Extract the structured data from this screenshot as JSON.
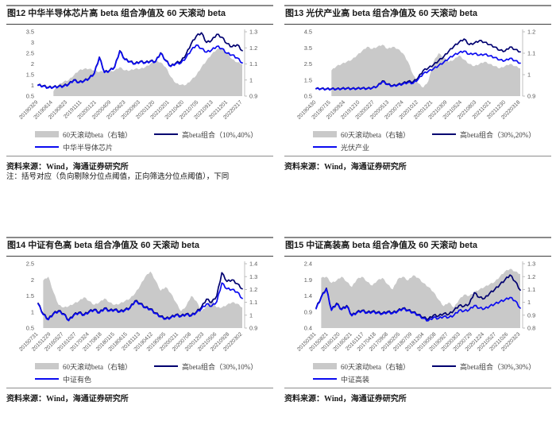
{
  "colors": {
    "area": "#c9c9c9",
    "navy": "#000070",
    "blue": "#0b0bf0",
    "tick_text": "#595959",
    "axis_line": "#b0b0b0"
  },
  "panels": [
    {
      "title": "图12  中华半导体芯片高 beta 组合净值及 60 天滚动 beta",
      "legend": [
        "60天滚动beta（右轴）",
        "高beta组合（10%,40%）",
        "中华半导体芯片"
      ],
      "source": "资料来源：Wind，海通证券研究所",
      "note": "注：括号对应（负向剔除分位点阈值，正向筛选分位点阈值），下同"
    },
    {
      "title": "图13 光伏产业高 beta 组合净值及 60 天滚动 beta",
      "legend": [
        "60天滚动beta（右轴）",
        "高beta组合（30%,20%）",
        "光伏产业"
      ],
      "source": "资料来源：Wind，海通证券研究所"
    },
    {
      "title": "图14 中证有色高 beta 组合净值及 60 天滚动 beta",
      "legend": [
        "60天滚动beta（右轴）",
        "高beta组合（30%,10%）",
        "中证有色"
      ],
      "source": "资料来源：Wind，海通证券研究所"
    },
    {
      "title": "图15 中证高装高 beta 组合净值及 60 天滚动 beta",
      "legend": [
        "60天滚动beta（右轴）",
        "高beta组合（30%,30%）",
        "中证高装"
      ],
      "source": "资料来源：Wind，海通证券研究所"
    }
  ],
  "chart_data": [
    {
      "type": "area+line",
      "title": "图12 中华半导体芯片高 beta 组合净值及 60 天滚动 beta",
      "left_axis": {
        "min": 0.5,
        "max": 3.5,
        "ticks": [
          0.5,
          1,
          1.5,
          2,
          2.5,
          3,
          3.5
        ]
      },
      "right_axis": {
        "min": 0.9,
        "max": 1.3,
        "ticks": [
          0.9,
          1,
          1.1,
          1.2,
          1.3
        ]
      },
      "x_labels": [
        "20190329",
        "20190614",
        "20190823",
        "20191111",
        "20200121",
        "20200409",
        "20200623",
        "20200903",
        "20201120",
        "20210201",
        "20210420",
        "20210705",
        "20210913",
        "20211201",
        "20220217"
      ],
      "jitter_line": 0.045,
      "jitter_area": 0.004,
      "series": [
        {
          "name": "60天滚动beta（右轴）",
          "axis": "right",
          "type": "area",
          "values": [
            null,
            null,
            null,
            0.93,
            0.97,
            0.99,
            1.0,
            1.03,
            1.06,
            1.07,
            1.07,
            1.06,
            1.05,
            1.06,
            1.05,
            1.06,
            1.08,
            1.06,
            1.06,
            1.07,
            1.07,
            1.08,
            1.1,
            1.12,
            1.11,
            1.08,
            1.02,
            0.98,
            0.97,
            0.97,
            1.0,
            1.03,
            1.08,
            1.12,
            1.16,
            1.19,
            1.2,
            1.17,
            1.13,
            1.11,
            1.1
          ]
        },
        {
          "name": "高beta组合（10%,40%）",
          "axis": "left",
          "type": "line",
          "color": "navy",
          "values": [
            1.02,
            0.98,
            0.91,
            0.93,
            0.96,
            0.98,
            1.07,
            1.26,
            1.15,
            1.22,
            1.34,
            1.57,
            2.32,
            1.62,
            1.7,
            1.87,
            2.62,
            2.22,
            2.12,
            2.02,
            2.12,
            2.07,
            2.14,
            2.12,
            2.52,
            2.17,
            1.9,
            2.05,
            2.12,
            2.45,
            2.95,
            3.3,
            3.45,
            3.0,
            3.1,
            3.38,
            3.25,
            2.95,
            2.8,
            2.9,
            2.62
          ]
        },
        {
          "name": "中华半导体芯片",
          "axis": "left",
          "type": "line",
          "color": "blue",
          "values": [
            1.0,
            0.96,
            0.89,
            0.91,
            0.94,
            0.96,
            1.05,
            1.24,
            1.13,
            1.2,
            1.32,
            1.55,
            2.3,
            1.6,
            1.68,
            1.85,
            2.6,
            2.2,
            2.1,
            2.0,
            2.1,
            2.05,
            2.12,
            2.1,
            2.5,
            2.15,
            1.88,
            2.02,
            2.05,
            2.3,
            2.65,
            2.88,
            2.72,
            2.55,
            2.65,
            2.82,
            2.72,
            2.5,
            2.42,
            2.28,
            2.05
          ]
        }
      ]
    },
    {
      "type": "area+line",
      "title": "图13 光伏产业高 beta 组合净值及 60 天滚动 beta",
      "left_axis": {
        "min": 0.5,
        "max": 4.5,
        "ticks": [
          0.5,
          1.5,
          2.5,
          3.5,
          4.5
        ]
      },
      "right_axis": {
        "min": 0.9,
        "max": 1.2,
        "ticks": [
          0.9,
          1,
          1.1,
          1.2
        ]
      },
      "x_labels": [
        "20190430",
        "20190715",
        "20190924",
        "20191210",
        "20200227",
        "20200513",
        "20200724",
        "20201012",
        "20201221",
        "20210309",
        "20210524",
        "20210803",
        "20211021",
        "20211230",
        "20220318"
      ],
      "jitter_line": 0.05,
      "jitter_area": 0.003,
      "series": [
        {
          "name": "60天滚动beta（右轴）",
          "axis": "right",
          "type": "area",
          "values": [
            null,
            null,
            null,
            1.02,
            1.04,
            1.05,
            1.06,
            1.07,
            1.09,
            1.11,
            1.13,
            1.12,
            1.13,
            1.14,
            1.12,
            1.13,
            1.12,
            1.1,
            1.06,
            1.0,
            0.96,
            0.94,
            0.97,
            1.06,
            1.1,
            1.08,
            1.06,
            1.07,
            1.09,
            1.07,
            1.05,
            1.04,
            1.05,
            1.06,
            1.05,
            1.04,
            1.03,
            1.04,
            1.05,
            1.04,
            1.03
          ]
        },
        {
          "name": "高beta组合（30%,20%）",
          "axis": "left",
          "type": "line",
          "color": "navy",
          "values": [
            0.97,
            0.97,
            0.95,
            0.96,
            0.95,
            0.97,
            0.99,
            0.97,
            0.98,
            1.0,
            0.98,
            1.02,
            1.12,
            1.45,
            1.25,
            1.15,
            1.22,
            1.3,
            1.42,
            1.38,
            1.65,
            2.1,
            2.25,
            2.45,
            2.7,
            2.95,
            3.3,
            3.6,
            3.85,
            4.05,
            3.7,
            3.8,
            3.95,
            3.85,
            3.7,
            3.55,
            3.35,
            3.3,
            3.55,
            3.4,
            3.25
          ]
        },
        {
          "name": "光伏产业",
          "axis": "left",
          "type": "line",
          "color": "blue",
          "values": [
            0.95,
            0.95,
            0.93,
            0.94,
            0.93,
            0.95,
            0.97,
            0.95,
            0.96,
            0.98,
            0.96,
            1.0,
            1.1,
            1.4,
            1.22,
            1.12,
            1.18,
            1.25,
            1.35,
            1.3,
            1.55,
            1.9,
            2.05,
            2.2,
            2.4,
            2.6,
            2.85,
            3.05,
            3.2,
            3.3,
            3.1,
            3.15,
            3.05,
            3.1,
            3.0,
            2.9,
            2.75,
            2.7,
            2.85,
            2.7,
            2.55
          ]
        }
      ]
    },
    {
      "type": "area+line",
      "title": "图14 中证有色高 beta 组合净值及 60 天滚动 beta",
      "left_axis": {
        "min": 0.5,
        "max": 2.5,
        "ticks": [
          0.5,
          1,
          1.5,
          2,
          2.5
        ]
      },
      "right_axis": {
        "min": 0.9,
        "max": 1.4,
        "ticks": [
          0.9,
          1,
          1.1,
          1.2,
          1.3,
          1.4
        ]
      },
      "x_labels": [
        "20150731",
        "20151229",
        "20160527",
        "20161027",
        "20170324",
        "20170818",
        "20180115",
        "20180615",
        "20181113",
        "20190412",
        "20190905",
        "20200211",
        "20200708",
        "20201203",
        "20210506",
        "20210928",
        "20220302"
      ],
      "jitter_line": 0.03,
      "jitter_area": 0.005,
      "series": [
        {
          "name": "60天滚动beta（右轴）",
          "axis": "right",
          "type": "area",
          "values": [
            null,
            1.27,
            1.3,
            1.18,
            1.08,
            1.06,
            1.07,
            1.09,
            1.11,
            1.14,
            1.11,
            1.08,
            1.1,
            1.13,
            1.1,
            1.08,
            1.09,
            1.11,
            1.13,
            1.17,
            1.23,
            1.3,
            1.34,
            1.27,
            1.19,
            1.22,
            1.17,
            1.1,
            1.03,
            1.07,
            1.15,
            1.11,
            1.03,
            1.07,
            1.12,
            1.06,
            1.06,
            1.08,
            1.1,
            1.09,
            1.06
          ]
        },
        {
          "name": "高beta组合（30%,10%）",
          "axis": "left",
          "type": "line",
          "color": "navy",
          "values": [
            1.27,
            0.94,
            0.78,
            0.96,
            1.04,
            0.95,
            0.75,
            0.92,
            0.99,
            0.92,
            1.02,
            1.08,
            0.99,
            1.12,
            1.05,
            1.08,
            1.02,
            1.07,
            1.14,
            1.35,
            1.27,
            1.15,
            1.1,
            0.97,
            0.87,
            0.8,
            0.84,
            0.92,
            0.88,
            0.94,
            0.9,
            1.0,
            1.15,
            1.4,
            1.3,
            1.5,
            2.22,
            1.95,
            2.0,
            1.88,
            1.72
          ]
        },
        {
          "name": "中证有色",
          "axis": "left",
          "type": "line",
          "color": "blue",
          "values": [
            1.25,
            0.92,
            0.76,
            0.94,
            1.02,
            0.93,
            0.73,
            0.9,
            0.97,
            0.9,
            1.0,
            1.06,
            0.97,
            1.1,
            1.03,
            1.06,
            1.0,
            1.05,
            1.12,
            1.33,
            1.25,
            1.13,
            1.08,
            0.95,
            0.85,
            0.78,
            0.82,
            0.9,
            0.86,
            0.92,
            0.88,
            0.98,
            1.1,
            1.25,
            1.18,
            1.32,
            1.9,
            1.72,
            1.7,
            1.62,
            1.42
          ]
        }
      ]
    },
    {
      "type": "area+line",
      "title": "图15 中证高装高 beta 组合净值及 60 天滚动 beta",
      "left_axis": {
        "min": 0.4,
        "max": 2.4,
        "ticks": [
          0.4,
          0.9,
          1.4,
          1.9,
          2.4
        ]
      },
      "right_axis": {
        "min": 0.8,
        "max": 1.3,
        "ticks": [
          0.8,
          0.9,
          1,
          1.1,
          1.2,
          1.3
        ]
      },
      "x_labels": [
        "20150331",
        "20150821",
        "20160120",
        "20160621",
        "20161117",
        "20170418",
        "20170908",
        "20180205",
        "20180709",
        "20181204",
        "20190508",
        "20190927",
        "20200303",
        "20200729",
        "20201224",
        "20210527",
        "20211026",
        "20220323"
      ],
      "jitter_line": 0.03,
      "jitter_area": 0.005,
      "series": [
        {
          "name": "60天滚动beta（右轴）",
          "axis": "right",
          "type": "area",
          "values": [
            null,
            1.19,
            1.2,
            1.15,
            1.17,
            1.2,
            1.16,
            1.12,
            1.18,
            1.2,
            1.16,
            1.13,
            1.17,
            1.19,
            1.14,
            1.1,
            1.18,
            1.2,
            1.17,
            1.21,
            1.19,
            1.15,
            1.12,
            1.08,
            1.02,
            0.97,
            1.0,
            0.96,
            1.02,
            1.06,
            1.05,
            1.08,
            1.1,
            1.12,
            1.14,
            1.16,
            1.2,
            1.24,
            1.26,
            1.24,
            1.22
          ]
        },
        {
          "name": "高beta组合（30%,30%）",
          "axis": "left",
          "type": "line",
          "color": "navy",
          "values": [
            1.02,
            1.37,
            1.64,
            0.97,
            1.17,
            0.99,
            1.1,
            0.8,
            0.9,
            0.95,
            0.89,
            0.92,
            0.89,
            0.86,
            0.91,
            0.88,
            0.94,
            1.02,
            0.96,
            0.9,
            0.82,
            0.73,
            0.68,
            0.8,
            0.78,
            0.85,
            0.83,
            0.95,
            1.1,
            1.08,
            1.15,
            1.5,
            1.35,
            1.32,
            1.48,
            1.6,
            1.75,
            1.9,
            2.05,
            1.85,
            1.58
          ]
        },
        {
          "name": "中证高装",
          "axis": "left",
          "type": "line",
          "color": "blue",
          "values": [
            1.0,
            1.35,
            1.62,
            0.95,
            1.15,
            0.97,
            1.08,
            0.78,
            0.88,
            0.93,
            0.87,
            0.9,
            0.87,
            0.84,
            0.89,
            0.86,
            0.92,
            1.0,
            0.94,
            0.88,
            0.8,
            0.7,
            0.63,
            0.73,
            0.7,
            0.76,
            0.73,
            0.8,
            0.95,
            0.93,
            0.97,
            1.1,
            1.02,
            1.0,
            1.08,
            1.15,
            1.22,
            1.28,
            1.35,
            1.25,
            1.02
          ]
        }
      ]
    }
  ]
}
